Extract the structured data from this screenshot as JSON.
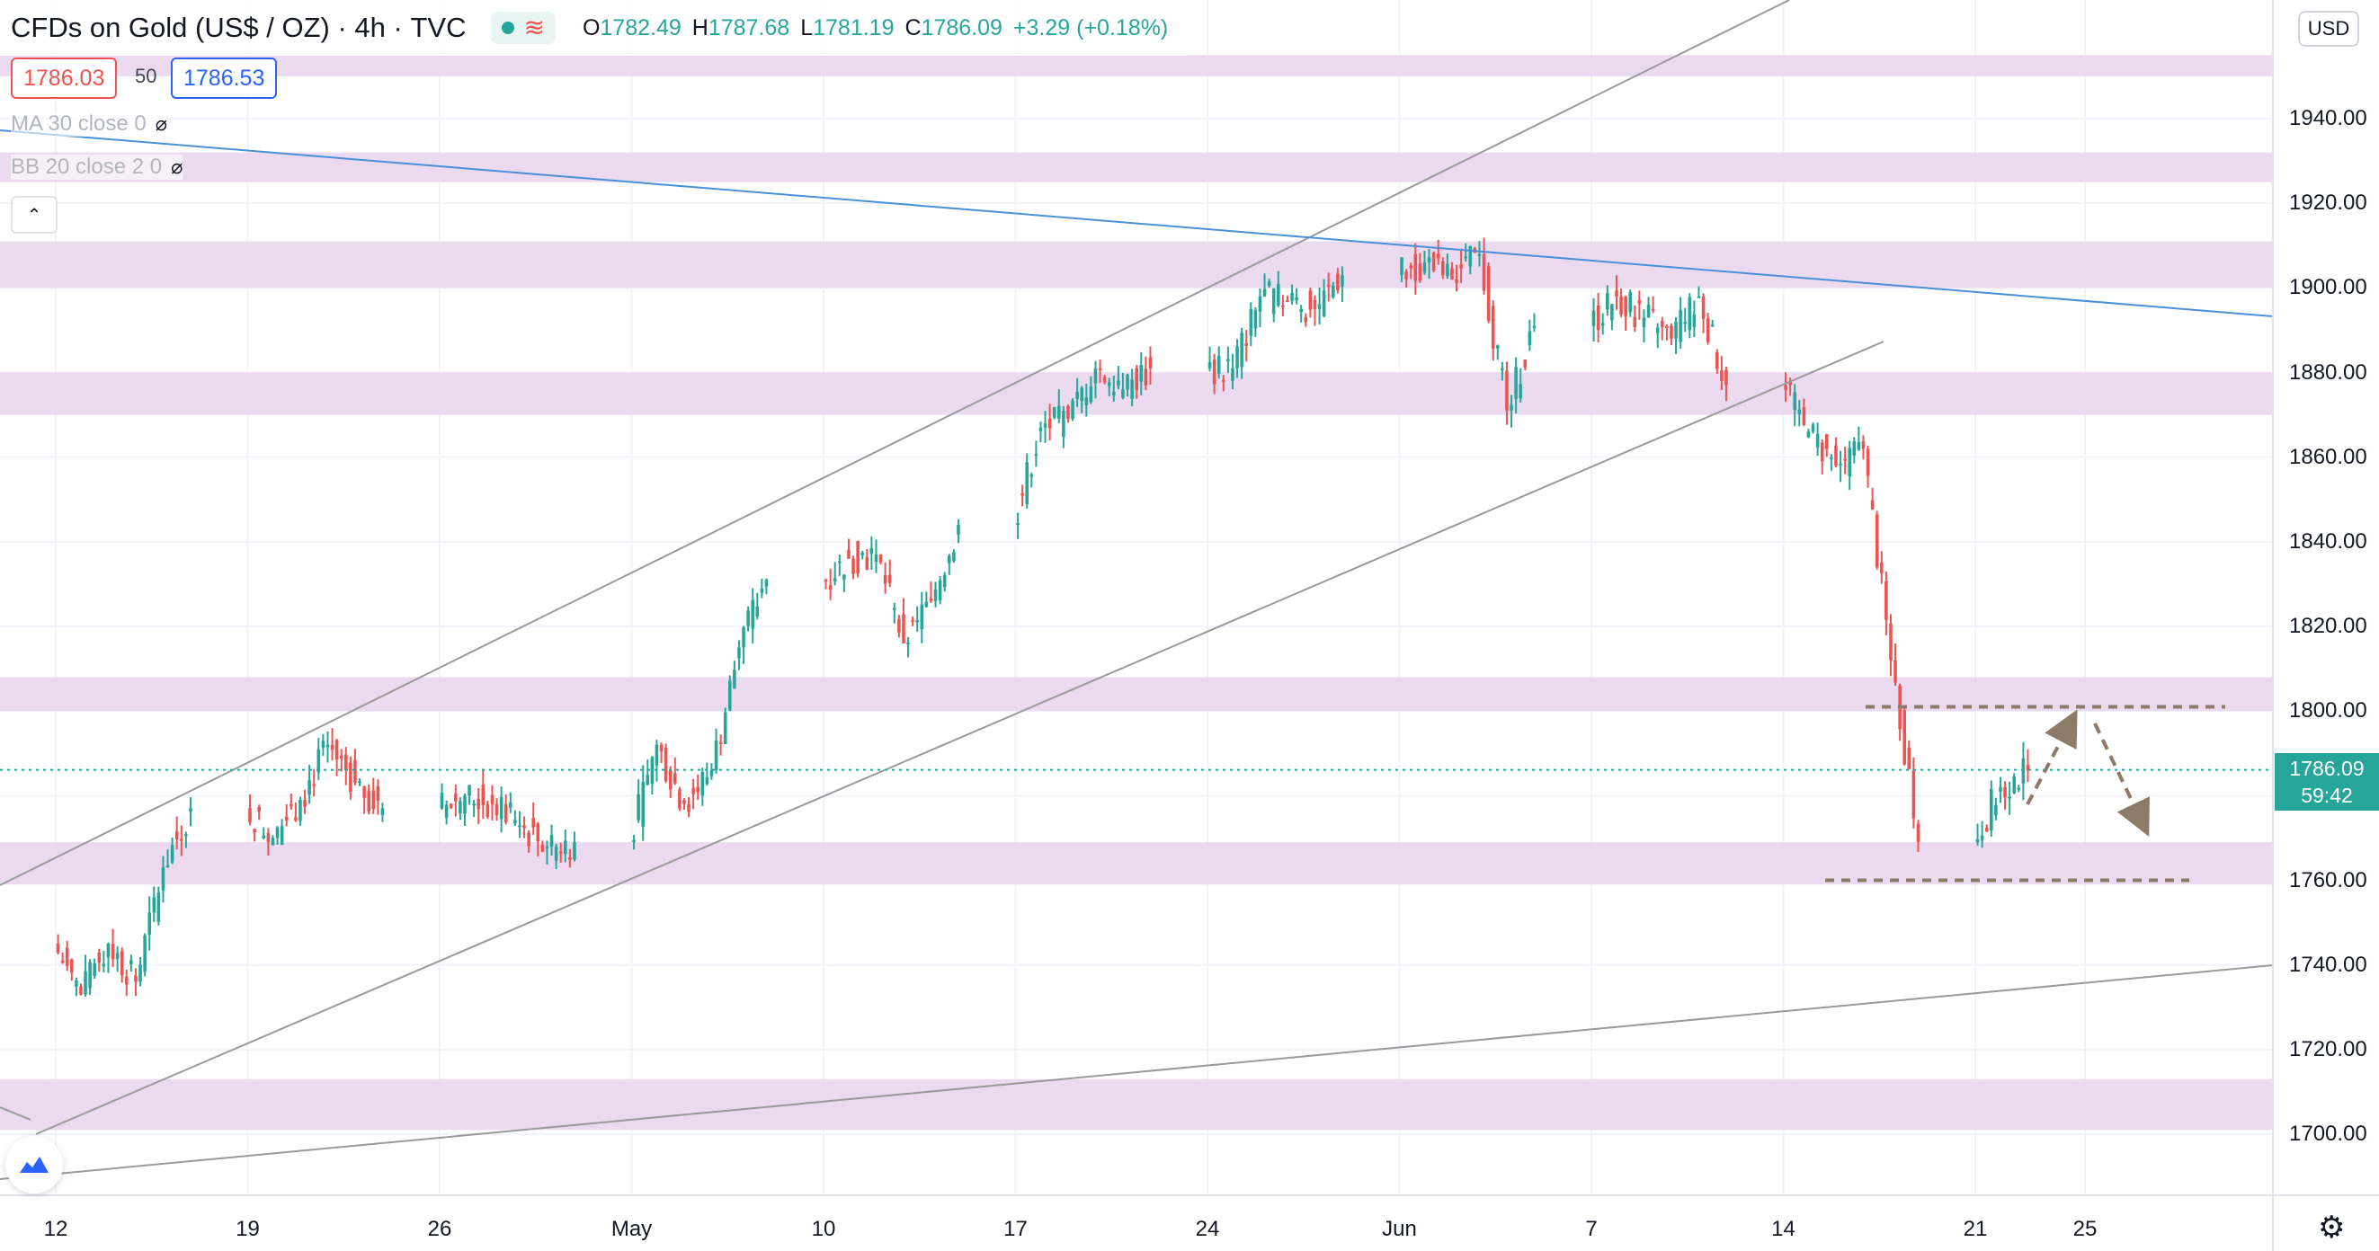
{
  "header": {
    "title": "CFDs on Gold (US$ / OZ)",
    "interval": "4h",
    "source": "TVC",
    "open_label": "O",
    "open": "1782.49",
    "high_label": "H",
    "high": "1787.68",
    "low_label": "L",
    "low": "1781.19",
    "close_label": "C",
    "close": "1786.09",
    "change": "+3.29 (+0.18%)"
  },
  "trade": {
    "bid": "1786.03",
    "spread": "50",
    "ask": "1786.53"
  },
  "indicators": {
    "ma": "MA 30 close 0",
    "bb": "BB 20 close 2 0"
  },
  "price_axis": {
    "currency": "USD",
    "last_price": "1786.09",
    "countdown": "59:42"
  },
  "icons": [
    "eye-hidden-icon",
    "chevron-up-icon",
    "gear-icon",
    "tradingview-cloud-icon",
    "live-dot-icon",
    "wave-icon"
  ],
  "colors": {
    "up": "#26a69a",
    "down": "#ef5350",
    "zone": "#e9d3ee",
    "trend_blue": "#4a90d9",
    "channel_gray": "#9a9a9a",
    "projection": "#8d7b68"
  },
  "chart_data": {
    "type": "candlestick",
    "title": "CFDs on Gold (US$ / OZ)",
    "ylim": [
      1690,
      1955
    ],
    "y_ticks": [
      1700,
      1720,
      1740,
      1760,
      1780,
      1800,
      1820,
      1840,
      1860,
      1880,
      1900,
      1920,
      1940
    ],
    "x_ticks": [
      {
        "label": "12",
        "date": "2021-04-12"
      },
      {
        "label": "19",
        "date": "2021-04-19"
      },
      {
        "label": "26",
        "date": "2021-04-26"
      },
      {
        "label": "May",
        "date": "2021-05-03"
      },
      {
        "label": "10",
        "date": "2021-05-10"
      },
      {
        "label": "17",
        "date": "2021-05-17"
      },
      {
        "label": "24",
        "date": "2021-05-24"
      },
      {
        "label": "Jun",
        "date": "2021-05-31"
      },
      {
        "label": "7",
        "date": "2021-06-07"
      },
      {
        "label": "14",
        "date": "2021-06-14"
      },
      {
        "label": "21",
        "date": "2021-06-21"
      },
      {
        "label": "25",
        "date": "2021-06-25"
      }
    ],
    "daily_closes": [
      {
        "date": "2021-04-12",
        "close": 1733
      },
      {
        "date": "2021-04-13",
        "close": 1745
      },
      {
        "date": "2021-04-14",
        "close": 1736
      },
      {
        "date": "2021-04-15",
        "close": 1763
      },
      {
        "date": "2021-04-16",
        "close": 1777
      },
      {
        "date": "2021-04-19",
        "close": 1770
      },
      {
        "date": "2021-04-20",
        "close": 1779
      },
      {
        "date": "2021-04-21",
        "close": 1792
      },
      {
        "date": "2021-04-22",
        "close": 1783
      },
      {
        "date": "2021-04-23",
        "close": 1777
      },
      {
        "date": "2021-04-26",
        "close": 1780
      },
      {
        "date": "2021-04-27",
        "close": 1778
      },
      {
        "date": "2021-04-28",
        "close": 1773
      },
      {
        "date": "2021-04-29",
        "close": 1768
      },
      {
        "date": "2021-04-30",
        "close": 1769
      },
      {
        "date": "2021-05-03",
        "close": 1792
      },
      {
        "date": "2021-05-04",
        "close": 1778
      },
      {
        "date": "2021-05-05",
        "close": 1786
      },
      {
        "date": "2021-05-06",
        "close": 1815
      },
      {
        "date": "2021-05-07",
        "close": 1831
      },
      {
        "date": "2021-05-10",
        "close": 1836
      },
      {
        "date": "2021-05-11",
        "close": 1837
      },
      {
        "date": "2021-05-12",
        "close": 1816
      },
      {
        "date": "2021-05-13",
        "close": 1826
      },
      {
        "date": "2021-05-14",
        "close": 1844
      },
      {
        "date": "2021-05-17",
        "close": 1867
      },
      {
        "date": "2021-05-18",
        "close": 1869
      },
      {
        "date": "2021-05-19",
        "close": 1881
      },
      {
        "date": "2021-05-20",
        "close": 1876
      },
      {
        "date": "2021-05-21",
        "close": 1881
      },
      {
        "date": "2021-05-24",
        "close": 1881
      },
      {
        "date": "2021-05-25",
        "close": 1898
      },
      {
        "date": "2021-05-26",
        "close": 1897
      },
      {
        "date": "2021-05-27",
        "close": 1895
      },
      {
        "date": "2021-05-28",
        "close": 1903
      },
      {
        "date": "2021-05-31",
        "close": 1906
      },
      {
        "date": "2021-06-01",
        "close": 1902
      },
      {
        "date": "2021-06-02",
        "close": 1908
      },
      {
        "date": "2021-06-03",
        "close": 1871
      },
      {
        "date": "2021-06-04",
        "close": 1891
      },
      {
        "date": "2021-06-07",
        "close": 1898
      },
      {
        "date": "2021-06-08",
        "close": 1893
      },
      {
        "date": "2021-06-09",
        "close": 1888
      },
      {
        "date": "2021-06-10",
        "close": 1898
      },
      {
        "date": "2021-06-11",
        "close": 1877
      },
      {
        "date": "2021-06-14",
        "close": 1866
      },
      {
        "date": "2021-06-15",
        "close": 1858
      },
      {
        "date": "2021-06-16",
        "close": 1862
      },
      {
        "date": "2021-06-17",
        "close": 1812
      },
      {
        "date": "2021-06-18",
        "close": 1769
      },
      {
        "date": "2021-06-21",
        "close": 1782
      },
      {
        "date": "2021-06-22",
        "close": 1786
      }
    ],
    "support_resistance_zones": [
      [
        1950,
        1955
      ],
      [
        1925,
        1932
      ],
      [
        1900,
        1911
      ],
      [
        1870,
        1880
      ],
      [
        1800,
        1808
      ],
      [
        1759,
        1769
      ],
      [
        1701,
        1713
      ]
    ],
    "grid": true
  }
}
